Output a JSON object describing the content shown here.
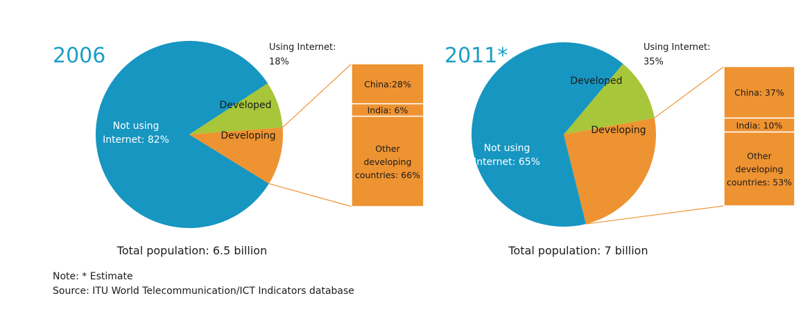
{
  "chart_data": [
    {
      "type": "pie",
      "year_label": "2006",
      "using_internet_label": "Using Internet:",
      "using_internet_value": "18%",
      "slices": [
        {
          "name": "Not using Internet",
          "label_lines": [
            "Not using",
            "Internet: 82%"
          ],
          "value": 82,
          "color": "#1696c1"
        },
        {
          "name": "Developed",
          "label_lines": [
            "Developed"
          ],
          "value": 8,
          "color": "#a8c639"
        },
        {
          "name": "Developing",
          "label_lines": [
            "Developing"
          ],
          "value": 10,
          "color": "#ee9331"
        }
      ],
      "breakdown_of": "Developing",
      "breakdown": [
        {
          "name": "China",
          "value": 28,
          "label_lines": [
            "China:28%"
          ]
        },
        {
          "name": "India",
          "value": 6,
          "label_lines": [
            "India: 6%"
          ]
        },
        {
          "name": "Other developing countries",
          "value": 66,
          "label_lines": [
            "Other",
            "developing",
            "countries: 66%"
          ]
        }
      ],
      "total_label": "Total population: 6.5 billion"
    },
    {
      "type": "pie",
      "year_label": "2011*",
      "using_internet_label": "Using Internet:",
      "using_internet_value": "35%",
      "slices": [
        {
          "name": "Not using Internet",
          "label_lines": [
            "Not using",
            "Internet: 65%"
          ],
          "value": 65,
          "color": "#1696c1"
        },
        {
          "name": "Developed",
          "label_lines": [
            "Developed"
          ],
          "value": 11,
          "color": "#a8c639"
        },
        {
          "name": "Developing",
          "label_lines": [
            "Developing"
          ],
          "value": 24,
          "color": "#ee9331"
        }
      ],
      "breakdown_of": "Developing",
      "breakdown": [
        {
          "name": "China",
          "value": 37,
          "label_lines": [
            "China: 37%"
          ]
        },
        {
          "name": "India",
          "value": 10,
          "label_lines": [
            "India: 10%"
          ]
        },
        {
          "name": "Other developing countries",
          "value": 53,
          "label_lines": [
            "Other",
            "developing",
            "countries: 53%"
          ]
        }
      ],
      "total_label": "Total population: 7 billion"
    }
  ],
  "notes": {
    "note": "Note: * Estimate",
    "source": "Source: ITU World Telecommunication/ICT Indicators database"
  },
  "colors": {
    "title": "#1c9dc7",
    "connector": "#ee9331",
    "text_dark": "#1a1a1a",
    "text_light": "#ffffff"
  }
}
